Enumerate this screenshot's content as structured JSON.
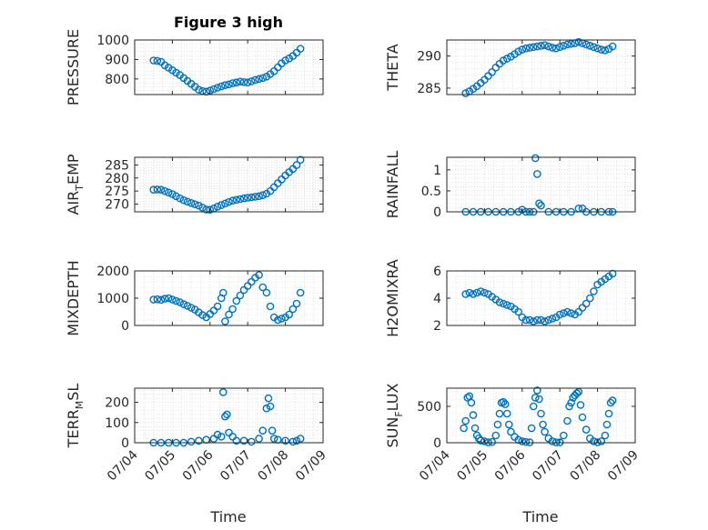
{
  "figure": {
    "title": "Figure 3 high",
    "xlabel": "Time"
  },
  "chart_data": [
    {
      "type": "scatter",
      "ylabel": "PRESSURE",
      "ylim": [
        720,
        1000
      ],
      "yticks": [
        800,
        900,
        1000
      ],
      "xlim": [
        "07/04",
        "07/09"
      ],
      "x": [
        "07/04.5",
        "07/04.6",
        "07/04.7",
        "07/04.8",
        "07/04.9",
        "07/05.0",
        "07/05.1",
        "07/05.2",
        "07/05.3",
        "07/05.4",
        "07/05.5",
        "07/05.6",
        "07/05.7",
        "07/05.8",
        "07/05.9",
        "07/06.0",
        "07/06.1",
        "07/06.2",
        "07/06.3",
        "07/06.4",
        "07/06.5",
        "07/06.6",
        "07/06.7",
        "07/06.8",
        "07/06.9",
        "07/07.0",
        "07/07.1",
        "07/07.2",
        "07/07.3",
        "07/07.4",
        "07/07.5",
        "07/07.6",
        "07/07.7",
        "07/07.8",
        "07/07.9",
        "07/08.0",
        "07/08.1",
        "07/08.2",
        "07/08.3",
        "07/08.4"
      ],
      "y": [
        895,
        893,
        888,
        870,
        858,
        845,
        832,
        820,
        805,
        790,
        775,
        760,
        745,
        738,
        735,
        740,
        748,
        755,
        762,
        768,
        772,
        778,
        782,
        786,
        784,
        782,
        788,
        795,
        800,
        805,
        812,
        825,
        840,
        860,
        880,
        895,
        905,
        918,
        935,
        955
      ]
    },
    {
      "type": "scatter",
      "ylabel": "THETA",
      "ylim": [
        284,
        292.5
      ],
      "yticks": [
        285,
        290
      ],
      "xlim": [
        "07/04",
        "07/09"
      ],
      "x": [
        "07/04.5",
        "07/04.6",
        "07/04.7",
        "07/04.8",
        "07/04.9",
        "07/05.0",
        "07/05.1",
        "07/05.2",
        "07/05.3",
        "07/05.4",
        "07/05.5",
        "07/05.6",
        "07/05.7",
        "07/05.8",
        "07/05.9",
        "07/06.0",
        "07/06.1",
        "07/06.2",
        "07/06.3",
        "07/06.4",
        "07/06.5",
        "07/06.6",
        "07/06.7",
        "07/06.8",
        "07/06.9",
        "07/07.0",
        "07/07.1",
        "07/07.2",
        "07/07.3",
        "07/07.4",
        "07/07.5",
        "07/07.6",
        "07/07.7",
        "07/07.8",
        "07/07.9",
        "07/08.0",
        "07/08.1",
        "07/08.2",
        "07/08.3",
        "07/08.4"
      ],
      "y": [
        284.2,
        284.5,
        284.9,
        285.3,
        285.8,
        286.3,
        286.9,
        287.5,
        288.2,
        288.8,
        289.3,
        289.6,
        289.9,
        290.3,
        290.7,
        291.0,
        291.2,
        291.3,
        291.4,
        291.5,
        291.6,
        291.7,
        291.5,
        291.3,
        291.2,
        291.4,
        291.6,
        291.8,
        291.9,
        292.0,
        292.2,
        292.0,
        291.8,
        291.6,
        291.4,
        291.2,
        291.0,
        290.9,
        291.1,
        291.5
      ]
    },
    {
      "type": "scatter",
      "ylabel": "AIR_TEMP",
      "ylabel_main": "AIR",
      "ylabel_sub": "T",
      "ylabel_rest": "EMP",
      "ylim": [
        267,
        288
      ],
      "yticks": [
        270,
        275,
        280,
        285
      ],
      "xlim": [
        "07/04",
        "07/09"
      ],
      "x": [
        "07/04.5",
        "07/04.6",
        "07/04.7",
        "07/04.8",
        "07/04.9",
        "07/05.0",
        "07/05.1",
        "07/05.2",
        "07/05.3",
        "07/05.4",
        "07/05.5",
        "07/05.6",
        "07/05.7",
        "07/05.8",
        "07/05.9",
        "07/06.0",
        "07/06.1",
        "07/06.2",
        "07/06.3",
        "07/06.4",
        "07/06.5",
        "07/06.6",
        "07/06.7",
        "07/06.8",
        "07/06.9",
        "07/07.0",
        "07/07.1",
        "07/07.2",
        "07/07.3",
        "07/07.4",
        "07/07.5",
        "07/07.6",
        "07/07.7",
        "07/07.8",
        "07/07.9",
        "07/08.0",
        "07/08.1",
        "07/08.2",
        "07/08.3",
        "07/08.4"
      ],
      "y": [
        275.5,
        275.6,
        275.5,
        275.0,
        274.4,
        273.8,
        273.0,
        272.2,
        271.5,
        270.9,
        270.4,
        269.9,
        269.4,
        268.6,
        267.9,
        267.8,
        268.3,
        269.0,
        269.6,
        270.2,
        270.8,
        271.3,
        271.6,
        271.9,
        272.2,
        272.4,
        272.6,
        272.8,
        273.0,
        273.4,
        274.0,
        275.0,
        276.5,
        278.0,
        279.5,
        281.0,
        282.3,
        283.5,
        285.0,
        287.0
      ]
    },
    {
      "type": "scatter",
      "ylabel": "RAINFALL",
      "ylim": [
        0,
        1.3
      ],
      "yticks": [
        0,
        0.5,
        1
      ],
      "xlim": [
        "07/04",
        "07/09"
      ],
      "x": [
        "07/04.5",
        "07/04.7",
        "07/04.9",
        "07/05.1",
        "07/05.3",
        "07/05.5",
        "07/05.7",
        "07/05.9",
        "07/06.0",
        "07/06.1",
        "07/06.2",
        "07/06.3",
        "07/06.35",
        "07/06.4",
        "07/06.45",
        "07/06.5",
        "07/06.7",
        "07/06.9",
        "07/07.1",
        "07/07.3",
        "07/07.5",
        "07/07.6",
        "07/07.7",
        "07/07.9",
        "07/08.1",
        "07/08.3",
        "07/08.4"
      ],
      "y": [
        0,
        0,
        0,
        0,
        0,
        0,
        0,
        0,
        0.05,
        0,
        0,
        0,
        1.28,
        0.9,
        0.2,
        0.15,
        0,
        0,
        0,
        0,
        0.08,
        0.08,
        0,
        0,
        0,
        0,
        0
      ]
    },
    {
      "type": "scatter",
      "ylabel": "MIXDEPTH",
      "ylim": [
        0,
        2000
      ],
      "yticks": [
        0,
        1000,
        2000
      ],
      "xlim": [
        "07/04",
        "07/09"
      ],
      "x": [
        "07/04.5",
        "07/04.6",
        "07/04.7",
        "07/04.8",
        "07/04.9",
        "07/05.0",
        "07/05.1",
        "07/05.2",
        "07/05.3",
        "07/05.4",
        "07/05.5",
        "07/05.6",
        "07/05.7",
        "07/05.8",
        "07/05.9",
        "07/06.0",
        "07/06.1",
        "07/06.2",
        "07/06.3",
        "07/06.35",
        "07/06.4",
        "07/06.5",
        "07/06.6",
        "07/06.7",
        "07/06.8",
        "07/06.9",
        "07/07.0",
        "07/07.1",
        "07/07.2",
        "07/07.3",
        "07/07.4",
        "07/07.5",
        "07/07.6",
        "07/07.7",
        "07/07.8",
        "07/07.9",
        "07/08.0",
        "07/08.1",
        "07/08.2",
        "07/08.3",
        "07/08.4"
      ],
      "y": [
        950,
        960,
        940,
        980,
        1000,
        950,
        900,
        850,
        780,
        720,
        650,
        580,
        480,
        380,
        300,
        420,
        550,
        700,
        1000,
        1200,
        150,
        400,
        600,
        900,
        1100,
        1300,
        1450,
        1600,
        1750,
        1850,
        1400,
        1200,
        700,
        300,
        200,
        250,
        300,
        400,
        600,
        800,
        1200
      ]
    },
    {
      "type": "scatter",
      "ylabel": "H2OMIXRA",
      "ylim": [
        2,
        6
      ],
      "yticks": [
        2,
        4,
        6
      ],
      "xlim": [
        "07/04",
        "07/09"
      ],
      "x": [
        "07/04.5",
        "07/04.6",
        "07/04.7",
        "07/04.8",
        "07/04.9",
        "07/05.0",
        "07/05.1",
        "07/05.2",
        "07/05.3",
        "07/05.4",
        "07/05.5",
        "07/05.6",
        "07/05.7",
        "07/05.8",
        "07/05.9",
        "07/06.0",
        "07/06.1",
        "07/06.2",
        "07/06.3",
        "07/06.4",
        "07/06.5",
        "07/06.6",
        "07/06.7",
        "07/06.8",
        "07/06.9",
        "07/07.0",
        "07/07.1",
        "07/07.2",
        "07/07.3",
        "07/07.4",
        "07/07.5",
        "07/07.6",
        "07/07.7",
        "07/07.8",
        "07/07.9",
        "07/08.0",
        "07/08.1",
        "07/08.2",
        "07/08.3",
        "07/08.4"
      ],
      "y": [
        4.3,
        4.4,
        4.3,
        4.4,
        4.5,
        4.4,
        4.3,
        4.1,
        3.9,
        3.7,
        3.6,
        3.5,
        3.4,
        3.2,
        3.0,
        2.6,
        2.4,
        2.4,
        2.3,
        2.4,
        2.4,
        2.3,
        2.4,
        2.5,
        2.6,
        2.8,
        2.9,
        3.0,
        2.9,
        2.8,
        3.0,
        3.3,
        3.6,
        4.0,
        4.5,
        5.0,
        5.2,
        5.4,
        5.6,
        5.8
      ]
    },
    {
      "type": "scatter",
      "ylabel": "TERR_MSL",
      "ylabel_main": "TERR",
      "ylabel_sub": "M",
      "ylabel_rest": "SL",
      "ylim": [
        0,
        270
      ],
      "yticks": [
        0,
        100,
        200
      ],
      "xlim": [
        "07/04",
        "07/09"
      ],
      "x": [
        "07/04.5",
        "07/04.7",
        "07/04.9",
        "07/05.1",
        "07/05.3",
        "07/05.5",
        "07/05.7",
        "07/05.9",
        "07/06.1",
        "07/06.2",
        "07/06.3",
        "07/06.35",
        "07/06.4",
        "07/06.45",
        "07/06.5",
        "07/06.6",
        "07/06.7",
        "07/06.9",
        "07/07.1",
        "07/07.3",
        "07/07.4",
        "07/07.5",
        "07/07.55",
        "07/07.6",
        "07/07.65",
        "07/07.7",
        "07/07.8",
        "07/08.0",
        "07/08.2",
        "07/08.3",
        "07/08.4"
      ],
      "y": [
        0,
        0,
        0,
        0,
        0,
        5,
        10,
        15,
        20,
        40,
        30,
        250,
        130,
        140,
        50,
        30,
        10,
        10,
        5,
        20,
        60,
        170,
        220,
        180,
        60,
        20,
        15,
        10,
        5,
        10,
        20
      ]
    },
    {
      "type": "scatter",
      "ylabel": "SUN_FLUX",
      "ylabel_main": "SUN",
      "ylabel_sub": "F",
      "ylabel_rest": "LUX",
      "ylim": [
        0,
        750
      ],
      "yticks": [
        0,
        500
      ],
      "xlim": [
        "07/04",
        "07/09"
      ],
      "x": [
        "07/04.45",
        "07/04.5",
        "07/04.55",
        "07/04.6",
        "07/04.65",
        "07/04.7",
        "07/04.75",
        "07/04.8",
        "07/04.85",
        "07/04.9",
        "07/05.0",
        "07/05.1",
        "07/05.2",
        "07/05.3",
        "07/05.35",
        "07/05.4",
        "07/05.45",
        "07/05.5",
        "07/05.55",
        "07/05.6",
        "07/05.65",
        "07/05.7",
        "07/05.8",
        "07/05.9",
        "07/06.0",
        "07/06.1",
        "07/06.2",
        "07/06.25",
        "07/06.3",
        "07/06.35",
        "07/06.4",
        "07/06.45",
        "07/06.5",
        "07/06.55",
        "07/06.6",
        "07/06.7",
        "07/06.8",
        "07/06.9",
        "07/07.0",
        "07/07.1",
        "07/07.2",
        "07/07.25",
        "07/07.3",
        "07/07.35",
        "07/07.4",
        "07/07.45",
        "07/07.5",
        "07/07.55",
        "07/07.6",
        "07/07.7",
        "07/07.8",
        "07/07.9",
        "07/08.0",
        "07/08.1",
        "07/08.2",
        "07/08.25",
        "07/08.3",
        "07/08.35",
        "07/08.4"
      ],
      "y": [
        200,
        300,
        620,
        640,
        550,
        380,
        200,
        100,
        60,
        30,
        20,
        5,
        10,
        100,
        250,
        400,
        550,
        560,
        530,
        400,
        250,
        150,
        80,
        40,
        20,
        10,
        5,
        200,
        500,
        620,
        720,
        600,
        400,
        250,
        150,
        60,
        20,
        5,
        5,
        100,
        300,
        500,
        550,
        620,
        650,
        680,
        700,
        520,
        350,
        180,
        60,
        20,
        5,
        20,
        100,
        250,
        400,
        550,
        580
      ]
    }
  ]
}
